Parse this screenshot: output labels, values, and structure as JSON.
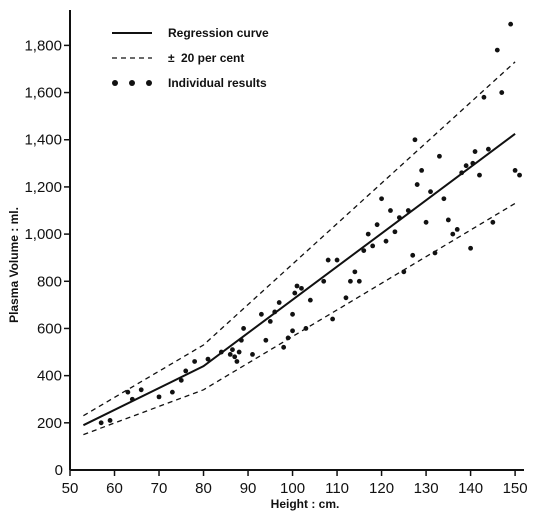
{
  "chart_data": {
    "type": "scatter",
    "xlabel": "Height : cm.",
    "ylabel": "Plasma Volume : ml.",
    "xlim": [
      50,
      152
    ],
    "ylim": [
      0,
      1950
    ],
    "xticks": [
      50,
      60,
      70,
      80,
      90,
      100,
      110,
      120,
      130,
      140,
      150
    ],
    "xtick_labels": [
      "50",
      "60",
      "70",
      "80",
      "90",
      "100",
      "110",
      "120",
      "130",
      "140",
      "150"
    ],
    "yticks": [
      200,
      400,
      600,
      800,
      1000,
      1200,
      1400,
      1600,
      1800
    ],
    "ytick_labels": [
      "200",
      "400",
      "600",
      "800",
      "1,000",
      "1,200",
      "1,400",
      "1,600",
      "1,800"
    ],
    "grid": false,
    "legend_position": "top-left",
    "legend": [
      "Regression curve",
      "20 per cent",
      "Individual results"
    ],
    "legend_pm_symbol": "±",
    "series": [
      {
        "name": "Regression curve",
        "kind": "line",
        "x": [
          53,
          80,
          150
        ],
        "y": [
          190,
          440,
          1425
        ]
      },
      {
        "name": "20 per cent",
        "kind": "dashed-upper",
        "x": [
          53,
          80,
          150
        ],
        "y": [
          230,
          530,
          1730
        ]
      },
      {
        "name": "20 per cent",
        "kind": "dashed-lower",
        "x": [
          53,
          80,
          150
        ],
        "y": [
          150,
          340,
          1130
        ]
      },
      {
        "name": "Individual results",
        "kind": "scatter",
        "x": [
          57,
          59,
          63,
          64,
          66,
          70,
          73,
          75,
          76,
          78,
          81,
          84,
          86,
          86.5,
          87,
          87.5,
          88,
          88.5,
          89,
          91,
          93,
          94,
          95,
          96,
          97,
          98,
          99,
          100,
          100,
          100.5,
          101,
          102,
          103,
          104,
          107,
          108,
          109,
          110,
          112,
          113,
          114,
          115,
          116,
          117,
          118,
          119,
          120,
          121,
          122,
          123,
          124,
          125,
          126,
          127,
          127.5,
          128,
          129,
          130,
          131,
          132,
          133,
          134,
          135,
          136,
          137,
          138,
          139,
          140,
          140.5,
          141,
          142,
          143,
          144,
          145,
          146,
          147,
          149,
          150,
          151
        ],
        "y": [
          200,
          210,
          330,
          300,
          340,
          310,
          330,
          380,
          420,
          460,
          470,
          500,
          490,
          510,
          480,
          460,
          500,
          550,
          600,
          490,
          660,
          550,
          630,
          670,
          710,
          520,
          560,
          590,
          660,
          750,
          780,
          770,
          600,
          720,
          800,
          890,
          640,
          890,
          730,
          800,
          840,
          800,
          930,
          1000,
          950,
          1040,
          1150,
          970,
          1100,
          1010,
          1070,
          840,
          1100,
          910,
          1400,
          1210,
          1270,
          1050,
          1180,
          920,
          1330,
          1150,
          1060,
          1000,
          1020,
          1260,
          1290,
          940,
          1300,
          1350,
          1250,
          1580,
          1360,
          1050,
          1780,
          1600,
          1890,
          1270,
          1250
        ]
      }
    ]
  }
}
